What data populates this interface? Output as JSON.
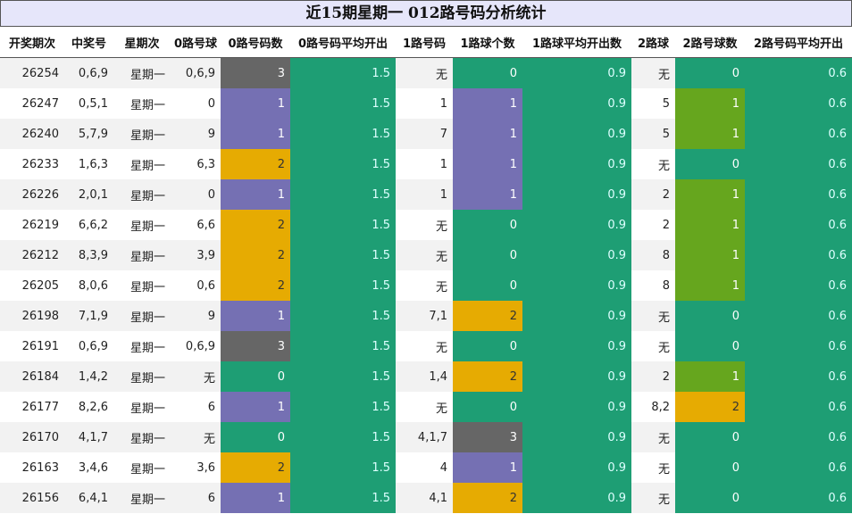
{
  "title": "近15期星期一 012路号码分析统计",
  "headers": [
    "开奖期次",
    "中奖号",
    "星期次",
    "0路号球",
    "0路号码数",
    "0路号码平均开出",
    "1路号码",
    "1路球个数",
    "1路球平均开出数",
    "2路球",
    "2路号球数",
    "2路号码平均开出"
  ],
  "colors": {
    "count0": "#1e9e74",
    "count1_r0r1": "#7570b3",
    "count2": "#e6ab02",
    "count3": "#666666",
    "count1_r2": "#66a61e",
    "avg": "#1e9e74"
  },
  "chart_data": {
    "type": "table",
    "rows": [
      {
        "issue": "26254",
        "numbers": "0,6,9",
        "weekday": "星期一",
        "r0": "0,6,9",
        "r0_count": 3,
        "r0_avg": 1.5,
        "r1": "无",
        "r1_count": 0,
        "r1_avg": 0.9,
        "r2": "无",
        "r2_count": 0,
        "r2_avg": 0.6
      },
      {
        "issue": "26247",
        "numbers": "0,5,1",
        "weekday": "星期一",
        "r0": "0",
        "r0_count": 1,
        "r0_avg": 1.5,
        "r1": "1",
        "r1_count": 1,
        "r1_avg": 0.9,
        "r2": "5",
        "r2_count": 1,
        "r2_avg": 0.6
      },
      {
        "issue": "26240",
        "numbers": "5,7,9",
        "weekday": "星期一",
        "r0": "9",
        "r0_count": 1,
        "r0_avg": 1.5,
        "r1": "7",
        "r1_count": 1,
        "r1_avg": 0.9,
        "r2": "5",
        "r2_count": 1,
        "r2_avg": 0.6
      },
      {
        "issue": "26233",
        "numbers": "1,6,3",
        "weekday": "星期一",
        "r0": "6,3",
        "r0_count": 2,
        "r0_avg": 1.5,
        "r1": "1",
        "r1_count": 1,
        "r1_avg": 0.9,
        "r2": "无",
        "r2_count": 0,
        "r2_avg": 0.6
      },
      {
        "issue": "26226",
        "numbers": "2,0,1",
        "weekday": "星期一",
        "r0": "0",
        "r0_count": 1,
        "r0_avg": 1.5,
        "r1": "1",
        "r1_count": 1,
        "r1_avg": 0.9,
        "r2": "2",
        "r2_count": 1,
        "r2_avg": 0.6
      },
      {
        "issue": "26219",
        "numbers": "6,6,2",
        "weekday": "星期一",
        "r0": "6,6",
        "r0_count": 2,
        "r0_avg": 1.5,
        "r1": "无",
        "r1_count": 0,
        "r1_avg": 0.9,
        "r2": "2",
        "r2_count": 1,
        "r2_avg": 0.6
      },
      {
        "issue": "26212",
        "numbers": "8,3,9",
        "weekday": "星期一",
        "r0": "3,9",
        "r0_count": 2,
        "r0_avg": 1.5,
        "r1": "无",
        "r1_count": 0,
        "r1_avg": 0.9,
        "r2": "8",
        "r2_count": 1,
        "r2_avg": 0.6
      },
      {
        "issue": "26205",
        "numbers": "8,0,6",
        "weekday": "星期一",
        "r0": "0,6",
        "r0_count": 2,
        "r0_avg": 1.5,
        "r1": "无",
        "r1_count": 0,
        "r1_avg": 0.9,
        "r2": "8",
        "r2_count": 1,
        "r2_avg": 0.6
      },
      {
        "issue": "26198",
        "numbers": "7,1,9",
        "weekday": "星期一",
        "r0": "9",
        "r0_count": 1,
        "r0_avg": 1.5,
        "r1": "7,1",
        "r1_count": 2,
        "r1_avg": 0.9,
        "r2": "无",
        "r2_count": 0,
        "r2_avg": 0.6
      },
      {
        "issue": "26191",
        "numbers": "0,6,9",
        "weekday": "星期一",
        "r0": "0,6,9",
        "r0_count": 3,
        "r0_avg": 1.5,
        "r1": "无",
        "r1_count": 0,
        "r1_avg": 0.9,
        "r2": "无",
        "r2_count": 0,
        "r2_avg": 0.6
      },
      {
        "issue": "26184",
        "numbers": "1,4,2",
        "weekday": "星期一",
        "r0": "无",
        "r0_count": 0,
        "r0_avg": 1.5,
        "r1": "1,4",
        "r1_count": 2,
        "r1_avg": 0.9,
        "r2": "2",
        "r2_count": 1,
        "r2_avg": 0.6
      },
      {
        "issue": "26177",
        "numbers": "8,2,6",
        "weekday": "星期一",
        "r0": "6",
        "r0_count": 1,
        "r0_avg": 1.5,
        "r1": "无",
        "r1_count": 0,
        "r1_avg": 0.9,
        "r2": "8,2",
        "r2_count": 2,
        "r2_avg": 0.6
      },
      {
        "issue": "26170",
        "numbers": "4,1,7",
        "weekday": "星期一",
        "r0": "无",
        "r0_count": 0,
        "r0_avg": 1.5,
        "r1": "4,1,7",
        "r1_count": 3,
        "r1_avg": 0.9,
        "r2": "无",
        "r2_count": 0,
        "r2_avg": 0.6
      },
      {
        "issue": "26163",
        "numbers": "3,4,6",
        "weekday": "星期一",
        "r0": "3,6",
        "r0_count": 2,
        "r0_avg": 1.5,
        "r1": "4",
        "r1_count": 1,
        "r1_avg": 0.9,
        "r2": "无",
        "r2_count": 0,
        "r2_avg": 0.6
      },
      {
        "issue": "26156",
        "numbers": "6,4,1",
        "weekday": "星期一",
        "r0": "6",
        "r0_count": 1,
        "r0_avg": 1.5,
        "r1": "4,1",
        "r1_count": 2,
        "r1_avg": 0.9,
        "r2": "无",
        "r2_count": 0,
        "r2_avg": 0.6
      }
    ]
  }
}
